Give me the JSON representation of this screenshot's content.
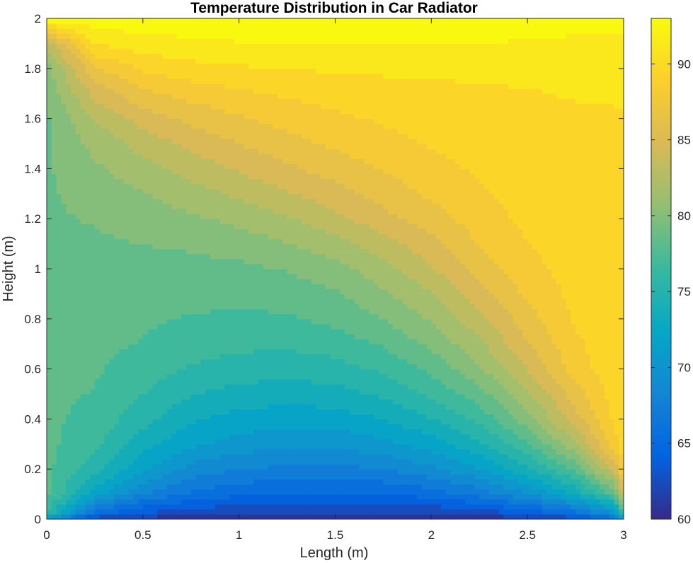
{
  "chart_data": {
    "type": "heatmap",
    "title": "Temperature Distribution in Car Radiator",
    "xlabel": "Length (m)",
    "ylabel": "Height (m)",
    "xlim": [
      0,
      3
    ],
    "ylim": [
      0,
      2
    ],
    "x_ticks": [
      "0",
      "0.5",
      "1",
      "1.5",
      "2",
      "2.5",
      "3"
    ],
    "y_ticks": [
      "0",
      "0.2",
      "0.4",
      "0.6",
      "0.8",
      "1",
      "1.2",
      "1.4",
      "1.6",
      "1.8",
      "2"
    ],
    "colorbar": {
      "range": [
        60,
        93
      ],
      "ticks": [
        "60",
        "65",
        "70",
        "75",
        "80",
        "85",
        "90"
      ],
      "colormap": "parula",
      "colors": [
        "#352a87",
        "#0363e1",
        "#1485d4",
        "#06a7c6",
        "#38b99e",
        "#92bf73",
        "#d9ba56",
        "#fcce2e",
        "#f9fb0e"
      ]
    },
    "grid_x": [
      0,
      0.25,
      0.5,
      0.75,
      1,
      1.25,
      1.5,
      1.75,
      2,
      2.25,
      2.5,
      2.75,
      2.95,
      3
    ],
    "grid_y": [
      0,
      0.03,
      0.1,
      0.2,
      0.3,
      0.4,
      0.5,
      0.6,
      0.7,
      0.8,
      0.9,
      1.0,
      1.1,
      1.2,
      1.3,
      1.4,
      1.5,
      1.6,
      1.7,
      1.8,
      1.9,
      2.0
    ],
    "values": [
      [
        70,
        62,
        61,
        60.5,
        60.3,
        60.2,
        60.2,
        60.2,
        60.3,
        60.5,
        61,
        62,
        65,
        72
      ],
      [
        76,
        66,
        63.5,
        62.5,
        62,
        61.8,
        61.7,
        61.8,
        62,
        62.7,
        64,
        66.5,
        70,
        78
      ],
      [
        78,
        72,
        68,
        66,
        65,
        64.6,
        64.5,
        64.8,
        65.5,
        67,
        69.5,
        73,
        78,
        84
      ],
      [
        78,
        75,
        71.5,
        69,
        68,
        67.6,
        67.5,
        68,
        69.2,
        71,
        74,
        78,
        84,
        89
      ],
      [
        78,
        76.5,
        73.5,
        71.5,
        70.5,
        70,
        70,
        70.7,
        72,
        74,
        77.5,
        82,
        88,
        90
      ],
      [
        78,
        77,
        75,
        73,
        72.2,
        71.8,
        72,
        72.8,
        74.3,
        76.5,
        80,
        85,
        89,
        90
      ],
      [
        78,
        77.5,
        76,
        74.5,
        73.8,
        73.5,
        73.8,
        74.7,
        76.3,
        78.5,
        82,
        86.5,
        89.5,
        90
      ],
      [
        78,
        77.8,
        76.8,
        75.8,
        75.2,
        75,
        75.3,
        76.3,
        78,
        80.5,
        84,
        88,
        89.8,
        90
      ],
      [
        78,
        78,
        77.5,
        76.8,
        76.4,
        76.3,
        76.8,
        77.8,
        79.6,
        82,
        85.5,
        88.5,
        89.8,
        90
      ],
      [
        78,
        78,
        77.8,
        77.5,
        77.3,
        77.4,
        78,
        79.2,
        81,
        83.5,
        86.5,
        89,
        90,
        90
      ],
      [
        78,
        78,
        78,
        78,
        78,
        78.3,
        79,
        80.5,
        82.3,
        85,
        87.5,
        89.3,
        90,
        90
      ],
      [
        78.5,
        78.5,
        78.5,
        78.6,
        78.8,
        79.3,
        80.2,
        81.8,
        83.8,
        86.3,
        88.3,
        89.5,
        90,
        90
      ],
      [
        79,
        79,
        79.2,
        79.5,
        80,
        80.7,
        81.8,
        83.3,
        85,
        87.3,
        88.8,
        89.6,
        90,
        90
      ],
      [
        79,
        79.3,
        79.8,
        80.5,
        81.2,
        82.2,
        83.5,
        85,
        86.5,
        88,
        89.2,
        89.8,
        90,
        90
      ],
      [
        79,
        79.8,
        80.7,
        81.7,
        82.7,
        83.8,
        85,
        86.3,
        87.5,
        88.6,
        89.4,
        89.8,
        90,
        90
      ],
      [
        79,
        80.5,
        81.8,
        83,
        84.2,
        85.3,
        86.3,
        87.3,
        88.3,
        89,
        89.6,
        89.9,
        90.1,
        90.1
      ],
      [
        79,
        81.3,
        83,
        84.5,
        85.6,
        86.6,
        87.5,
        88.3,
        88.9,
        89.5,
        89.8,
        90,
        90.2,
        90.2
      ],
      [
        79,
        82.5,
        84.7,
        86,
        87,
        87.8,
        88.5,
        89,
        89.5,
        89.8,
        90,
        90.2,
        90.3,
        90.3
      ],
      [
        79.5,
        84.5,
        86.8,
        87.8,
        88.5,
        89,
        89.4,
        89.7,
        89.9,
        90.1,
        90.3,
        90.5,
        90.5,
        90.5
      ],
      [
        80,
        87,
        89,
        89.8,
        90.2,
        90.4,
        90.6,
        90.7,
        90.8,
        90.8,
        90.8,
        90.6,
        90.6,
        90.8
      ],
      [
        83,
        90.5,
        91.3,
        91.7,
        91.9,
        92,
        92.1,
        92.1,
        92.1,
        92,
        91.8,
        91.5,
        91.3,
        91.5
      ],
      [
        93,
        93,
        93,
        93,
        93,
        93,
        93,
        93,
        93,
        93,
        93,
        93,
        93,
        93
      ]
    ]
  }
}
